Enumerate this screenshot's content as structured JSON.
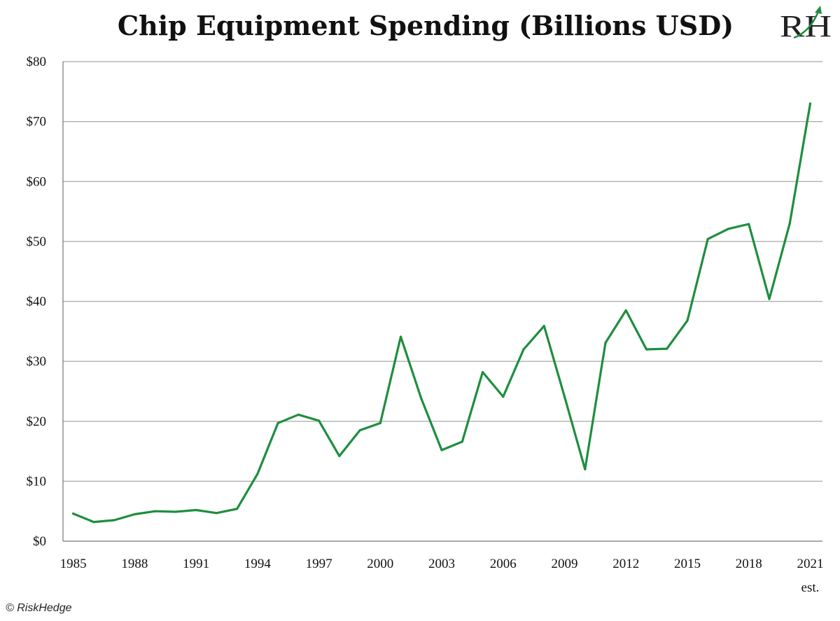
{
  "chart_data": {
    "type": "line",
    "title": "Chip Equipment Spending (Billions USD)",
    "xlabel": "",
    "ylabel": "",
    "ylim": [
      0,
      80
    ],
    "y_ticks": [
      0,
      10,
      20,
      30,
      40,
      50,
      60,
      70,
      80
    ],
    "y_tick_labels": [
      "$0",
      "$10",
      "$20",
      "$30",
      "$40",
      "$50",
      "$60",
      "$70",
      "$80"
    ],
    "x_tick_years": [
      1985,
      1988,
      1991,
      1994,
      1997,
      2000,
      2003,
      2006,
      2009,
      2012,
      2015,
      2018,
      2021
    ],
    "x_tick_labels": [
      "1985",
      "1988",
      "1991",
      "1994",
      "1997",
      "2000",
      "2003",
      "2006",
      "2009",
      "2012",
      "2015",
      "2018",
      "2021"
    ],
    "x_tick_sublabel": "est.",
    "grid": true,
    "line_color": "#1e8e3e",
    "series": [
      {
        "name": "Chip Equipment Spending",
        "x": [
          1985,
          1986,
          1987,
          1988,
          1989,
          1990,
          1991,
          1992,
          1993,
          1994,
          1995,
          1996,
          1997,
          1998,
          1999,
          2000,
          2001,
          2002,
          2003,
          2004,
          2005,
          2006,
          2007,
          2008,
          2009,
          2010,
          2011,
          2012,
          2013,
          2014,
          2015,
          2016,
          2017,
          2018,
          2019,
          2020,
          2021
        ],
        "values": [
          4.6,
          3.2,
          3.5,
          4.5,
          5.0,
          4.9,
          5.2,
          4.7,
          5.4,
          11.2,
          19.7,
          21.1,
          20.1,
          14.2,
          18.5,
          19.7,
          34.1,
          23.8,
          15.2,
          16.6,
          28.2,
          24.1,
          32.0,
          35.9,
          24.1,
          12.0,
          33.1,
          38.5,
          32.0,
          32.1,
          36.8,
          50.4,
          52.1,
          52.9,
          40.4,
          53.0,
          73.0
        ]
      }
    ]
  },
  "logo": {
    "text": "RH"
  },
  "credit": {
    "text": "© RiskHedge"
  }
}
